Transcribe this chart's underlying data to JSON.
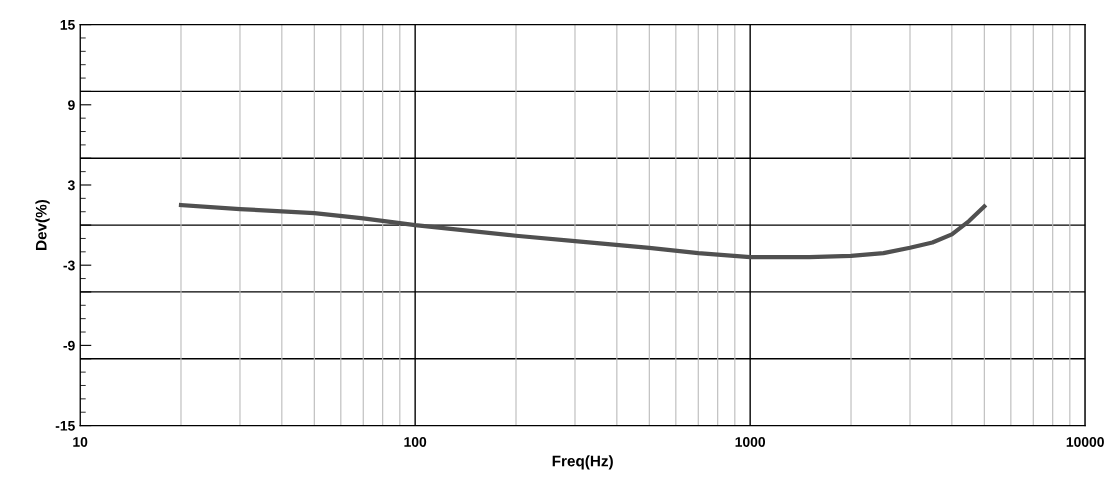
{
  "chart_data": {
    "type": "line",
    "xlabel": "Freq(Hz)",
    "ylabel": "Dev(%)",
    "log": "x",
    "xlim": [
      10,
      10000
    ],
    "xticks": [
      10,
      100,
      1000,
      10000
    ],
    "ylim": [
      -15,
      15
    ],
    "yticks": [
      15,
      {
        "value": 10,
        "label": null
      },
      9,
      {
        "value": 5,
        "label": null
      },
      3,
      {
        "value": 0,
        "label": null
      },
      -3,
      {
        "value": -5,
        "label": null
      },
      -9,
      {
        "value": -10,
        "label": null
      },
      -15
    ],
    "grid": true,
    "marker": "none",
    "line_style": "solid",
    "series": [
      {
        "color": "#505050",
        "x": [
          20,
          30,
          50,
          70,
          100,
          200,
          300,
          500,
          700,
          1000,
          1500,
          2000,
          2500,
          3000,
          3500,
          4000,
          4500,
          5000
        ],
        "values": [
          1.5,
          1.2,
          0.9,
          0.5,
          0,
          -0.8,
          -1.2,
          -1.7,
          -2.1,
          -2.4,
          -2.4,
          -2.3,
          -2.1,
          -1.7,
          -1.3,
          -0.7,
          0.3,
          1.4
        ]
      }
    ]
  }
}
